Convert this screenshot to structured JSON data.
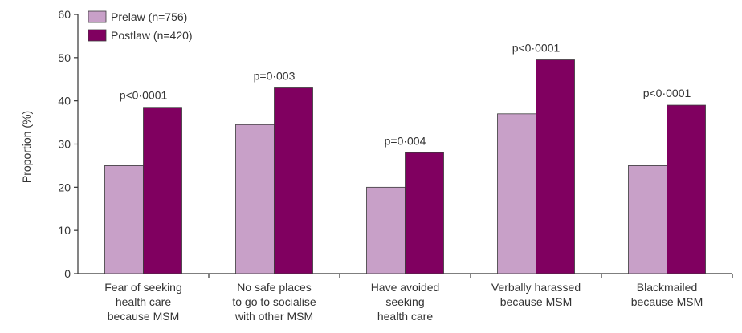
{
  "chart_data": {
    "type": "bar",
    "categories": [
      [
        "Fear of seeking",
        "health care",
        "because MSM"
      ],
      [
        "No safe places",
        "to go to socialise",
        "with other MSM"
      ],
      [
        "Have avoided",
        "seeking",
        "health care"
      ],
      [
        "Verbally harassed",
        "because MSM"
      ],
      [
        "Blackmailed",
        "because MSM"
      ]
    ],
    "series": [
      {
        "name": "Prelaw (n=756)",
        "values": [
          25,
          34.5,
          20,
          37,
          25
        ],
        "color": "#c8a0c8"
      },
      {
        "name": "Postlaw (n=420)",
        "values": [
          38.5,
          43,
          28,
          49.5,
          39
        ],
        "color": "#800060"
      }
    ],
    "annotations": [
      "p<0·0001",
      "p=0·003",
      "p=0·004",
      "p<0·0001",
      "p<0·0001"
    ],
    "ylabel": "Proportion (%)",
    "xlabel": "",
    "ylim": [
      0,
      60
    ],
    "yticks": [
      0,
      10,
      20,
      30,
      40,
      50,
      60
    ],
    "grid": false,
    "legend_position": "top-left"
  }
}
